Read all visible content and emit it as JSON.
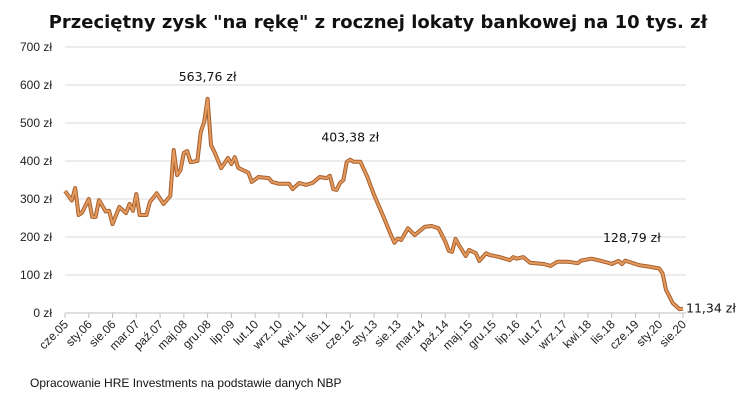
{
  "chart_data": {
    "type": "line",
    "title": "Przeciętny zysk \"na rękę\" z rocznej lokaty bankowej na 10 tys. zł",
    "xlabel": "",
    "ylabel": "",
    "ylim": [
      0,
      700
    ],
    "y_ticks": [
      "0 zł",
      "100 zł",
      "200 zł",
      "300 zł",
      "400 zł",
      "500 zł",
      "600 zł",
      "700 zł"
    ],
    "x_ticks": [
      "cze.05",
      "sty.06",
      "sie.06",
      "mar.07",
      "paź.07",
      "maj.08",
      "gru.08",
      "lip.09",
      "lut.10",
      "wrz.10",
      "kwi.11",
      "lis.11",
      "cze.12",
      "sty.13",
      "sie.13",
      "mar.14",
      "paź.14",
      "maj.15",
      "gru.15",
      "lip.16",
      "lut.17",
      "wrz.17",
      "kwi.18",
      "lis.18",
      "cze.19",
      "sty.20",
      "sie.20"
    ],
    "grid": "horizontal",
    "line_color": "#C97B42",
    "points": [
      [
        "2005-06",
        321
      ],
      [
        "2005-08",
        296
      ],
      [
        "2005-09",
        329
      ],
      [
        "2005-10",
        258
      ],
      [
        "2005-11",
        264
      ],
      [
        "2006-01",
        300
      ],
      [
        "2006-02",
        253
      ],
      [
        "2006-03",
        253
      ],
      [
        "2006-04",
        297
      ],
      [
        "2006-06",
        267
      ],
      [
        "2006-07",
        269
      ],
      [
        "2006-08",
        234
      ],
      [
        "2006-10",
        279
      ],
      [
        "2006-12",
        263
      ],
      [
        "2007-01",
        287
      ],
      [
        "2007-02",
        269
      ],
      [
        "2007-03",
        313
      ],
      [
        "2007-04",
        258
      ],
      [
        "2007-06",
        258
      ],
      [
        "2007-07",
        292
      ],
      [
        "2007-09",
        315
      ],
      [
        "2007-11",
        287
      ],
      [
        "2008-01",
        308
      ],
      [
        "2008-02",
        429
      ],
      [
        "2008-03",
        363
      ],
      [
        "2008-04",
        376
      ],
      [
        "2008-05",
        421
      ],
      [
        "2008-06",
        426
      ],
      [
        "2008-07",
        397
      ],
      [
        "2008-09",
        400
      ],
      [
        "2008-10",
        477
      ],
      [
        "2008-11",
        503
      ],
      [
        "2008-12",
        563.76
      ],
      [
        "2009-01",
        442
      ],
      [
        "2009-02",
        424
      ],
      [
        "2009-04",
        381
      ],
      [
        "2009-06",
        408
      ],
      [
        "2009-07",
        392
      ],
      [
        "2009-08",
        410
      ],
      [
        "2009-09",
        382
      ],
      [
        "2009-12",
        369
      ],
      [
        "2010-01",
        345
      ],
      [
        "2010-03",
        358
      ],
      [
        "2010-06",
        355
      ],
      [
        "2010-07",
        345
      ],
      [
        "2010-09",
        340
      ],
      [
        "2010-12",
        340
      ],
      [
        "2011-01",
        326
      ],
      [
        "2011-03",
        342
      ],
      [
        "2011-05",
        337
      ],
      [
        "2011-07",
        343
      ],
      [
        "2011-09",
        358
      ],
      [
        "2011-11",
        355
      ],
      [
        "2011-12",
        361
      ],
      [
        "2012-01",
        326
      ],
      [
        "2012-02",
        324
      ],
      [
        "2012-03",
        342
      ],
      [
        "2012-04",
        350
      ],
      [
        "2012-05",
        398
      ],
      [
        "2012-06",
        403.38
      ],
      [
        "2012-07",
        398
      ],
      [
        "2012-09",
        398
      ],
      [
        "2012-11",
        359
      ],
      [
        "2013-01",
        311
      ],
      [
        "2013-04",
        249
      ],
      [
        "2013-06",
        205
      ],
      [
        "2013-07",
        185
      ],
      [
        "2013-08",
        196
      ],
      [
        "2013-09",
        192
      ],
      [
        "2013-11",
        223
      ],
      [
        "2014-01",
        205
      ],
      [
        "2014-04",
        227
      ],
      [
        "2014-06",
        229
      ],
      [
        "2014-08",
        223
      ],
      [
        "2014-10",
        188
      ],
      [
        "2014-11",
        164
      ],
      [
        "2014-12",
        161
      ],
      [
        "2015-01",
        195
      ],
      [
        "2015-02",
        179
      ],
      [
        "2015-04",
        150
      ],
      [
        "2015-05",
        166
      ],
      [
        "2015-07",
        157
      ],
      [
        "2015-08",
        137
      ],
      [
        "2015-10",
        157
      ],
      [
        "2015-11",
        153
      ],
      [
        "2016-02",
        147
      ],
      [
        "2016-05",
        139
      ],
      [
        "2016-06",
        147
      ],
      [
        "2016-07",
        143
      ],
      [
        "2016-09",
        147
      ],
      [
        "2016-11",
        132
      ],
      [
        "2017-03",
        129
      ],
      [
        "2017-05",
        124
      ],
      [
        "2017-07",
        135
      ],
      [
        "2017-10",
        135
      ],
      [
        "2018-01",
        131
      ],
      [
        "2018-02",
        138
      ],
      [
        "2018-05",
        143
      ],
      [
        "2018-07",
        139
      ],
      [
        "2018-10",
        132
      ],
      [
        "2018-11",
        129
      ],
      [
        "2019-01",
        137
      ],
      [
        "2019-02",
        128.79
      ],
      [
        "2019-03",
        138
      ],
      [
        "2019-07",
        126
      ],
      [
        "2019-10",
        122
      ],
      [
        "2020-01",
        117
      ],
      [
        "2020-02",
        104
      ],
      [
        "2020-03",
        61
      ],
      [
        "2020-05",
        26
      ],
      [
        "2020-07",
        10
      ],
      [
        "2020-08",
        11.34
      ]
    ],
    "annotations": [
      {
        "date": "2008-12",
        "label": "563,76 zł"
      },
      {
        "date": "2012-06",
        "label": "403,38 zł"
      },
      {
        "date": "2019-02",
        "label": "128,79 zł"
      },
      {
        "date": "2020-08",
        "label": "11,34 zł"
      }
    ]
  },
  "source_note": "Opracowanie HRE Investments na podstawie danych NBP"
}
